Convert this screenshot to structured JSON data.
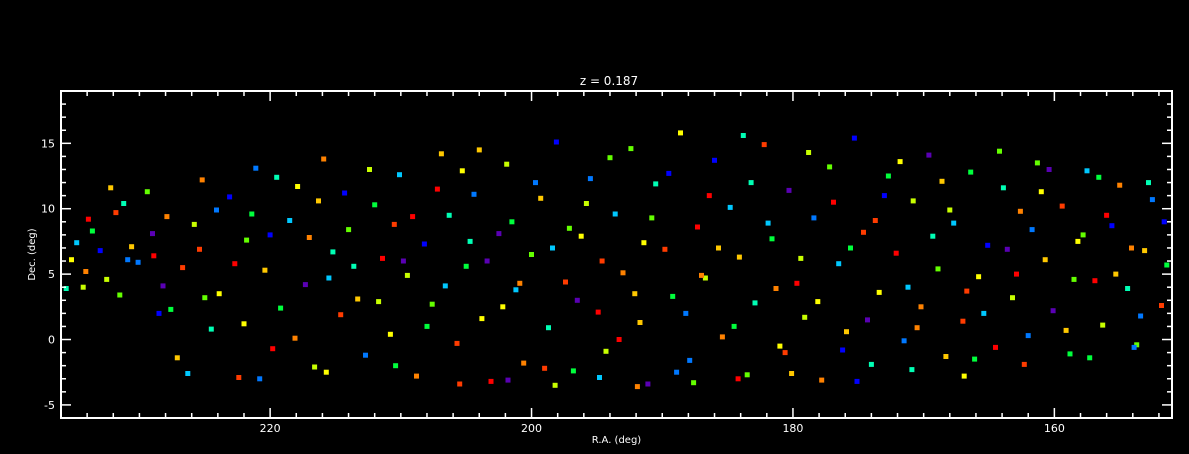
{
  "chart_data": {
    "type": "scatter",
    "title": "z = 0.187",
    "xlabel": "R.A. (deg)",
    "ylabel": "Dec. (deg)",
    "xlim": [
      236,
      151
    ],
    "ylim": [
      -6,
      19
    ],
    "x_ticks": [
      220,
      200,
      180,
      160
    ],
    "y_ticks": [
      -5,
      0,
      5,
      10,
      15
    ],
    "grid": false,
    "legend": "none",
    "axis_color": "#ffffff",
    "background": "#000000",
    "palette": [
      "#5a00b4",
      "#0000ff",
      "#0078ff",
      "#00c8ff",
      "#00ffb4",
      "#00ff3c",
      "#64ff00",
      "#c8ff00",
      "#ffff00",
      "#ffc800",
      "#ff8200",
      "#ff3c00",
      "#ff0000"
    ],
    "points": [
      [
        235.2,
        6.1,
        8
      ],
      [
        234.8,
        7.4,
        3
      ],
      [
        234.1,
        5.2,
        10
      ],
      [
        233.6,
        8.3,
        5
      ],
      [
        233.0,
        6.8,
        1
      ],
      [
        232.5,
        4.6,
        7
      ],
      [
        231.8,
        9.7,
        11
      ],
      [
        231.2,
        10.4,
        4
      ],
      [
        230.6,
        7.1,
        9
      ],
      [
        230.1,
        5.9,
        2
      ],
      [
        229.4,
        11.3,
        6
      ],
      [
        228.9,
        6.4,
        12
      ],
      [
        228.2,
        4.1,
        0
      ],
      [
        227.6,
        2.3,
        5
      ],
      [
        227.1,
        -1.4,
        9
      ],
      [
        226.3,
        -2.6,
        3
      ],
      [
        225.8,
        8.8,
        7
      ],
      [
        225.2,
        12.2,
        10
      ],
      [
        224.5,
        0.8,
        4
      ],
      [
        223.9,
        3.5,
        8
      ],
      [
        223.1,
        10.9,
        1
      ],
      [
        222.4,
        -2.9,
        11
      ],
      [
        221.8,
        7.6,
        6
      ],
      [
        221.1,
        13.1,
        2
      ],
      [
        220.4,
        5.3,
        9
      ],
      [
        219.8,
        -0.7,
        12
      ],
      [
        219.2,
        2.4,
        5
      ],
      [
        218.5,
        9.1,
        3
      ],
      [
        217.9,
        11.7,
        8
      ],
      [
        217.3,
        4.2,
        0
      ],
      [
        216.6,
        -2.1,
        7
      ],
      [
        215.9,
        13.8,
        10
      ],
      [
        215.2,
        6.7,
        4
      ],
      [
        214.6,
        1.9,
        11
      ],
      [
        214.0,
        8.4,
        6
      ],
      [
        213.3,
        3.1,
        9
      ],
      [
        212.7,
        -1.2,
        2
      ],
      [
        212.0,
        10.3,
        5
      ],
      [
        211.4,
        6.2,
        12
      ],
      [
        210.8,
        0.4,
        8
      ],
      [
        210.1,
        12.6,
        3
      ],
      [
        209.5,
        4.9,
        7
      ],
      [
        208.8,
        -2.8,
        10
      ],
      [
        208.2,
        7.3,
        1
      ],
      [
        207.6,
        2.7,
        6
      ],
      [
        206.9,
        14.2,
        9
      ],
      [
        206.3,
        9.5,
        4
      ],
      [
        205.7,
        -0.3,
        11
      ],
      [
        205.0,
        5.6,
        5
      ],
      [
        204.4,
        11.1,
        2
      ],
      [
        203.8,
        1.6,
        8
      ],
      [
        203.1,
        -3.2,
        12
      ],
      [
        202.5,
        8.1,
        0
      ],
      [
        201.9,
        13.4,
        7
      ],
      [
        201.2,
        3.8,
        3
      ],
      [
        200.6,
        -1.8,
        10
      ],
      [
        200.0,
        6.5,
        6
      ],
      [
        199.3,
        10.8,
        9
      ],
      [
        198.7,
        0.9,
        4
      ],
      [
        198.1,
        15.1,
        1
      ],
      [
        197.4,
        4.4,
        11
      ],
      [
        196.8,
        -2.4,
        5
      ],
      [
        196.2,
        7.9,
        8
      ],
      [
        195.5,
        12.3,
        2
      ],
      [
        194.9,
        2.1,
        12
      ],
      [
        194.3,
        -0.9,
        7
      ],
      [
        193.6,
        9.6,
        3
      ],
      [
        193.0,
        5.1,
        10
      ],
      [
        192.4,
        14.6,
        6
      ],
      [
        191.7,
        1.3,
        9
      ],
      [
        191.1,
        -3.4,
        0
      ],
      [
        190.5,
        11.9,
        4
      ],
      [
        189.8,
        6.9,
        11
      ],
      [
        189.2,
        3.3,
        5
      ],
      [
        188.6,
        15.8,
        8
      ],
      [
        187.9,
        -1.6,
        2
      ],
      [
        187.3,
        8.6,
        12
      ],
      [
        186.7,
        4.7,
        7
      ],
      [
        186.0,
        13.7,
        1
      ],
      [
        185.4,
        0.2,
        10
      ],
      [
        184.8,
        10.1,
        3
      ],
      [
        184.1,
        6.3,
        9
      ],
      [
        183.5,
        -2.7,
        6
      ],
      [
        182.9,
        2.8,
        4
      ],
      [
        182.2,
        14.9,
        11
      ],
      [
        181.6,
        7.7,
        5
      ],
      [
        181.0,
        -0.5,
        8
      ],
      [
        180.3,
        11.4,
        0
      ],
      [
        179.7,
        4.3,
        12
      ],
      [
        179.1,
        1.7,
        7
      ],
      [
        178.4,
        9.3,
        2
      ],
      [
        177.8,
        -3.1,
        10
      ],
      [
        177.2,
        13.2,
        6
      ],
      [
        176.5,
        5.8,
        3
      ],
      [
        175.9,
        0.6,
        9
      ],
      [
        175.3,
        15.4,
        1
      ],
      [
        174.6,
        8.2,
        11
      ],
      [
        174.0,
        -1.9,
        4
      ],
      [
        173.4,
        3.6,
        8
      ],
      [
        172.7,
        12.5,
        5
      ],
      [
        172.1,
        6.6,
        12
      ],
      [
        171.5,
        -0.1,
        2
      ],
      [
        170.8,
        10.6,
        7
      ],
      [
        170.2,
        2.5,
        10
      ],
      [
        169.6,
        14.1,
        0
      ],
      [
        168.9,
        5.4,
        6
      ],
      [
        168.3,
        -1.3,
        9
      ],
      [
        167.7,
        8.9,
        3
      ],
      [
        167.0,
        1.4,
        11
      ],
      [
        166.4,
        12.8,
        5
      ],
      [
        165.8,
        4.8,
        8
      ],
      [
        165.1,
        7.2,
        1
      ],
      [
        164.5,
        -0.6,
        12
      ],
      [
        163.9,
        11.6,
        4
      ],
      [
        163.2,
        3.2,
        7
      ],
      [
        162.6,
        9.8,
        10
      ],
      [
        162.0,
        0.3,
        2
      ],
      [
        161.3,
        13.5,
        6
      ],
      [
        160.7,
        6.1,
        9
      ],
      [
        160.1,
        2.2,
        0
      ],
      [
        159.4,
        10.2,
        11
      ],
      [
        158.8,
        -1.1,
        5
      ],
      [
        158.2,
        7.5,
        8
      ],
      [
        157.5,
        12.9,
        3
      ],
      [
        156.9,
        4.5,
        12
      ],
      [
        156.3,
        1.1,
        7
      ],
      [
        155.6,
        8.7,
        1
      ],
      [
        155.0,
        11.8,
        10
      ],
      [
        154.4,
        3.9,
        4
      ],
      [
        153.7,
        -0.4,
        6
      ],
      [
        153.1,
        6.8,
        9
      ],
      [
        152.5,
        10.7,
        2
      ],
      [
        151.8,
        2.6,
        11
      ],
      [
        151.4,
        5.7,
        5
      ],
      [
        233.9,
        9.2,
        12
      ],
      [
        231.5,
        3.4,
        6
      ],
      [
        229.0,
        8.1,
        0
      ],
      [
        226.7,
        5.5,
        11
      ],
      [
        224.1,
        9.9,
        2
      ],
      [
        222.0,
        1.2,
        8
      ],
      [
        219.5,
        12.4,
        4
      ],
      [
        217.0,
        7.8,
        10
      ],
      [
        214.3,
        11.2,
        1
      ],
      [
        211.7,
        2.9,
        7
      ],
      [
        209.1,
        9.4,
        12
      ],
      [
        206.6,
        4.1,
        3
      ],
      [
        204.0,
        14.5,
        9
      ],
      [
        201.5,
        9.0,
        5
      ],
      [
        199.0,
        -2.2,
        11
      ],
      [
        196.5,
        3.0,
        0
      ],
      [
        194.0,
        13.9,
        6
      ],
      [
        191.4,
        7.4,
        8
      ],
      [
        188.9,
        -2.5,
        2
      ],
      [
        186.4,
        11.0,
        12
      ],
      [
        183.8,
        15.6,
        4
      ],
      [
        181.3,
        3.9,
        10
      ],
      [
        178.8,
        14.3,
        7
      ],
      [
        176.2,
        -0.8,
        1
      ],
      [
        173.7,
        9.1,
        11
      ],
      [
        171.2,
        4.0,
        3
      ],
      [
        168.6,
        12.1,
        9
      ],
      [
        166.1,
        -1.5,
        5
      ],
      [
        163.6,
        6.9,
        0
      ],
      [
        161.0,
        11.3,
        8
      ],
      [
        158.5,
        4.6,
        6
      ],
      [
        156.0,
        9.5,
        12
      ],
      [
        153.4,
        1.8,
        2
      ],
      [
        235.6,
        3.9,
        4
      ],
      [
        232.2,
        11.6,
        9
      ],
      [
        228.5,
        2.0,
        1
      ],
      [
        225.4,
        6.9,
        11
      ],
      [
        221.4,
        9.6,
        5
      ],
      [
        218.1,
        0.1,
        10
      ],
      [
        215.5,
        4.7,
        3
      ],
      [
        212.4,
        13.0,
        7
      ],
      [
        209.8,
        6.0,
        0
      ],
      [
        207.2,
        11.5,
        12
      ],
      [
        204.7,
        7.5,
        4
      ],
      [
        202.2,
        2.5,
        8
      ],
      [
        199.7,
        12.0,
        2
      ],
      [
        197.1,
        8.5,
        6
      ],
      [
        194.6,
        6.0,
        11
      ],
      [
        192.1,
        3.5,
        9
      ],
      [
        189.5,
        12.7,
        1
      ],
      [
        187.0,
        4.9,
        10
      ],
      [
        184.5,
        1.0,
        5
      ],
      [
        181.9,
        8.9,
        3
      ],
      [
        179.4,
        6.2,
        7
      ],
      [
        176.9,
        10.5,
        12
      ],
      [
        174.3,
        1.5,
        0
      ],
      [
        171.8,
        13.6,
        8
      ],
      [
        169.3,
        7.9,
        4
      ],
      [
        166.7,
        3.7,
        11
      ],
      [
        164.2,
        14.4,
        6
      ],
      [
        161.7,
        8.4,
        2
      ],
      [
        159.1,
        0.7,
        9
      ],
      [
        156.6,
        12.4,
        5
      ],
      [
        154.1,
        7.0,
        10
      ],
      [
        151.6,
        9.0,
        1
      ],
      [
        234.3,
        4.0,
        7
      ],
      [
        230.9,
        6.1,
        2
      ],
      [
        227.9,
        9.4,
        10
      ],
      [
        225.0,
        3.2,
        6
      ],
      [
        222.7,
        5.8,
        12
      ],
      [
        220.0,
        8.0,
        1
      ],
      [
        216.3,
        10.6,
        9
      ],
      [
        213.6,
        5.6,
        4
      ],
      [
        210.5,
        8.8,
        11
      ],
      [
        208.0,
        1.0,
        5
      ],
      [
        205.3,
        12.9,
        8
      ],
      [
        203.4,
        6.0,
        0
      ],
      [
        200.9,
        4.3,
        10
      ],
      [
        198.4,
        7.0,
        3
      ],
      [
        195.8,
        10.4,
        7
      ],
      [
        193.3,
        0.0,
        12
      ],
      [
        190.8,
        9.3,
        6
      ],
      [
        188.2,
        2.0,
        2
      ],
      [
        185.7,
        7.0,
        9
      ],
      [
        183.2,
        12.0,
        4
      ],
      [
        180.6,
        -1.0,
        11
      ],
      [
        178.1,
        2.9,
        8
      ],
      [
        175.6,
        7.0,
        5
      ],
      [
        173.0,
        11.0,
        1
      ],
      [
        170.5,
        0.9,
        10
      ],
      [
        168.0,
        9.9,
        7
      ],
      [
        165.4,
        2.0,
        3
      ],
      [
        162.9,
        5.0,
        12
      ],
      [
        160.4,
        13.0,
        0
      ],
      [
        157.8,
        8.0,
        6
      ],
      [
        155.3,
        5.0,
        9
      ],
      [
        152.8,
        12.0,
        4
      ],
      [
        220.8,
        -3.0,
        2
      ],
      [
        215.7,
        -2.5,
        8
      ],
      [
        210.4,
        -2.0,
        5
      ],
      [
        205.5,
        -3.4,
        11
      ],
      [
        201.8,
        -3.1,
        0
      ],
      [
        198.2,
        -3.5,
        7
      ],
      [
        194.8,
        -2.9,
        3
      ],
      [
        191.9,
        -3.6,
        10
      ],
      [
        187.6,
        -3.3,
        6
      ],
      [
        184.2,
        -3.0,
        12
      ],
      [
        180.1,
        -2.6,
        9
      ],
      [
        175.1,
        -3.2,
        1
      ],
      [
        170.9,
        -2.3,
        4
      ],
      [
        166.9,
        -2.8,
        8
      ],
      [
        162.3,
        -1.9,
        11
      ],
      [
        157.3,
        -1.4,
        5
      ],
      [
        153.9,
        -0.6,
        2
      ]
    ]
  }
}
